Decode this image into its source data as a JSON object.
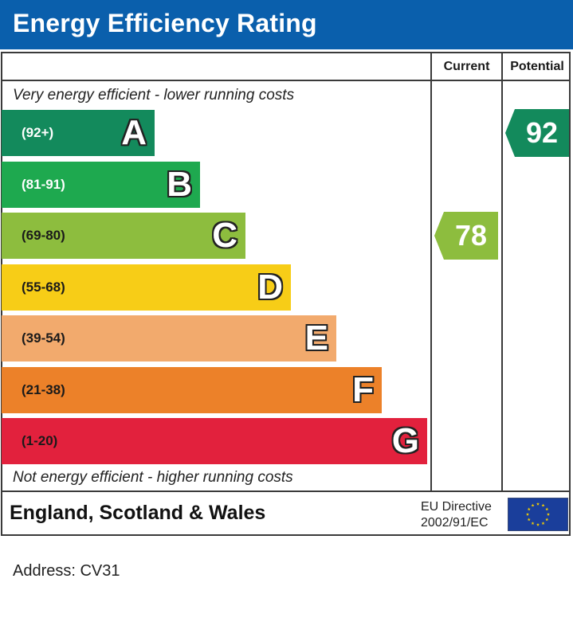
{
  "header": {
    "title": "Energy Efficiency Rating"
  },
  "columns": {
    "current": "Current",
    "potential": "Potential"
  },
  "captions": {
    "top": "Very energy efficient - lower running costs",
    "bottom": "Not energy efficient - higher running costs"
  },
  "footer": {
    "country": "England, Scotland & Wales",
    "directive_line1": "EU Directive",
    "directive_line2": "2002/91/EC",
    "flag_icon": "eu-flag-icon"
  },
  "address": "Address: CV31",
  "chart_data": {
    "type": "bar",
    "title": "Energy Efficiency Rating",
    "categories": [
      "A",
      "B",
      "C",
      "D",
      "E",
      "F",
      "G"
    ],
    "bands": [
      {
        "letter": "A",
        "range": "(92+)",
        "min": 92,
        "max": 100,
        "color": "#138a5c",
        "dark": true
      },
      {
        "letter": "B",
        "range": "(81-91)",
        "min": 81,
        "max": 91,
        "color": "#1ea94f",
        "dark": true
      },
      {
        "letter": "C",
        "range": "(69-80)",
        "min": 69,
        "max": 80,
        "color": "#8dbd3e",
        "dark": false
      },
      {
        "letter": "D",
        "range": "(55-68)",
        "min": 55,
        "max": 68,
        "color": "#f7cd17",
        "dark": false
      },
      {
        "letter": "E",
        "range": "(39-54)",
        "min": 39,
        "max": 54,
        "color": "#f2aa6d",
        "dark": false
      },
      {
        "letter": "F",
        "range": "(21-38)",
        "min": 21,
        "max": 38,
        "color": "#ec8129",
        "dark": false
      },
      {
        "letter": "G",
        "range": "(1-20)",
        "min": 1,
        "max": 20,
        "color": "#e2213d",
        "dark": false
      }
    ],
    "current": {
      "value": 78,
      "band": "C",
      "color": "#8dbd3e"
    },
    "potential": {
      "value": 92,
      "band": "A",
      "color": "#138a5c"
    }
  }
}
